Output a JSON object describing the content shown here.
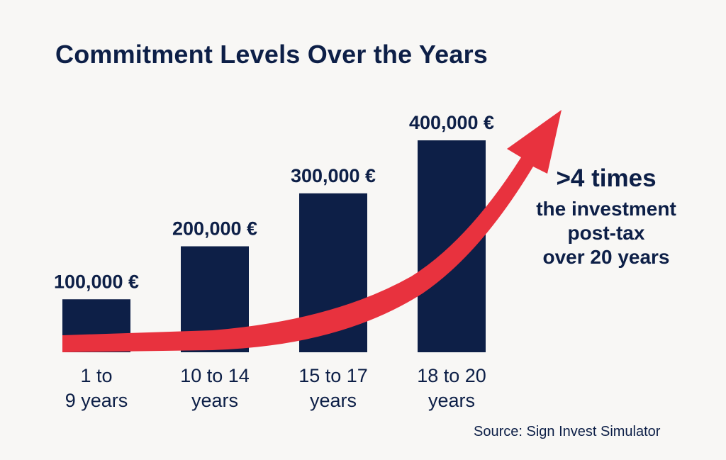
{
  "title": "Commitment Levels Over the Years",
  "colors": {
    "background": "#f8f7f5",
    "bar": "#0d1f47",
    "text": "#0d1f47",
    "arrow": "#e8323e"
  },
  "chart_data": {
    "type": "bar",
    "title": "Commitment Levels Over the Years",
    "categories": [
      [
        "1 to",
        "9 years"
      ],
      [
        "10 to 14",
        "years"
      ],
      [
        "15 to 17",
        "years"
      ],
      [
        "18 to 20",
        "years"
      ]
    ],
    "values": [
      100000,
      200000,
      300000,
      400000
    ],
    "value_labels": [
      "100,000 €",
      "200,000 €",
      "300,000 €",
      "400,000 €"
    ],
    "unit": "€",
    "xlabel": "",
    "ylabel": "",
    "ylim": [
      0,
      400000
    ],
    "grid": false,
    "legend": "none",
    "trend_arrow": "rising red arrow across the bars"
  },
  "callout": {
    "headline": ">4 times",
    "lines": [
      "the investment",
      "post-tax",
      "over 20 years"
    ]
  },
  "source": "Source: Sign Invest Simulator"
}
